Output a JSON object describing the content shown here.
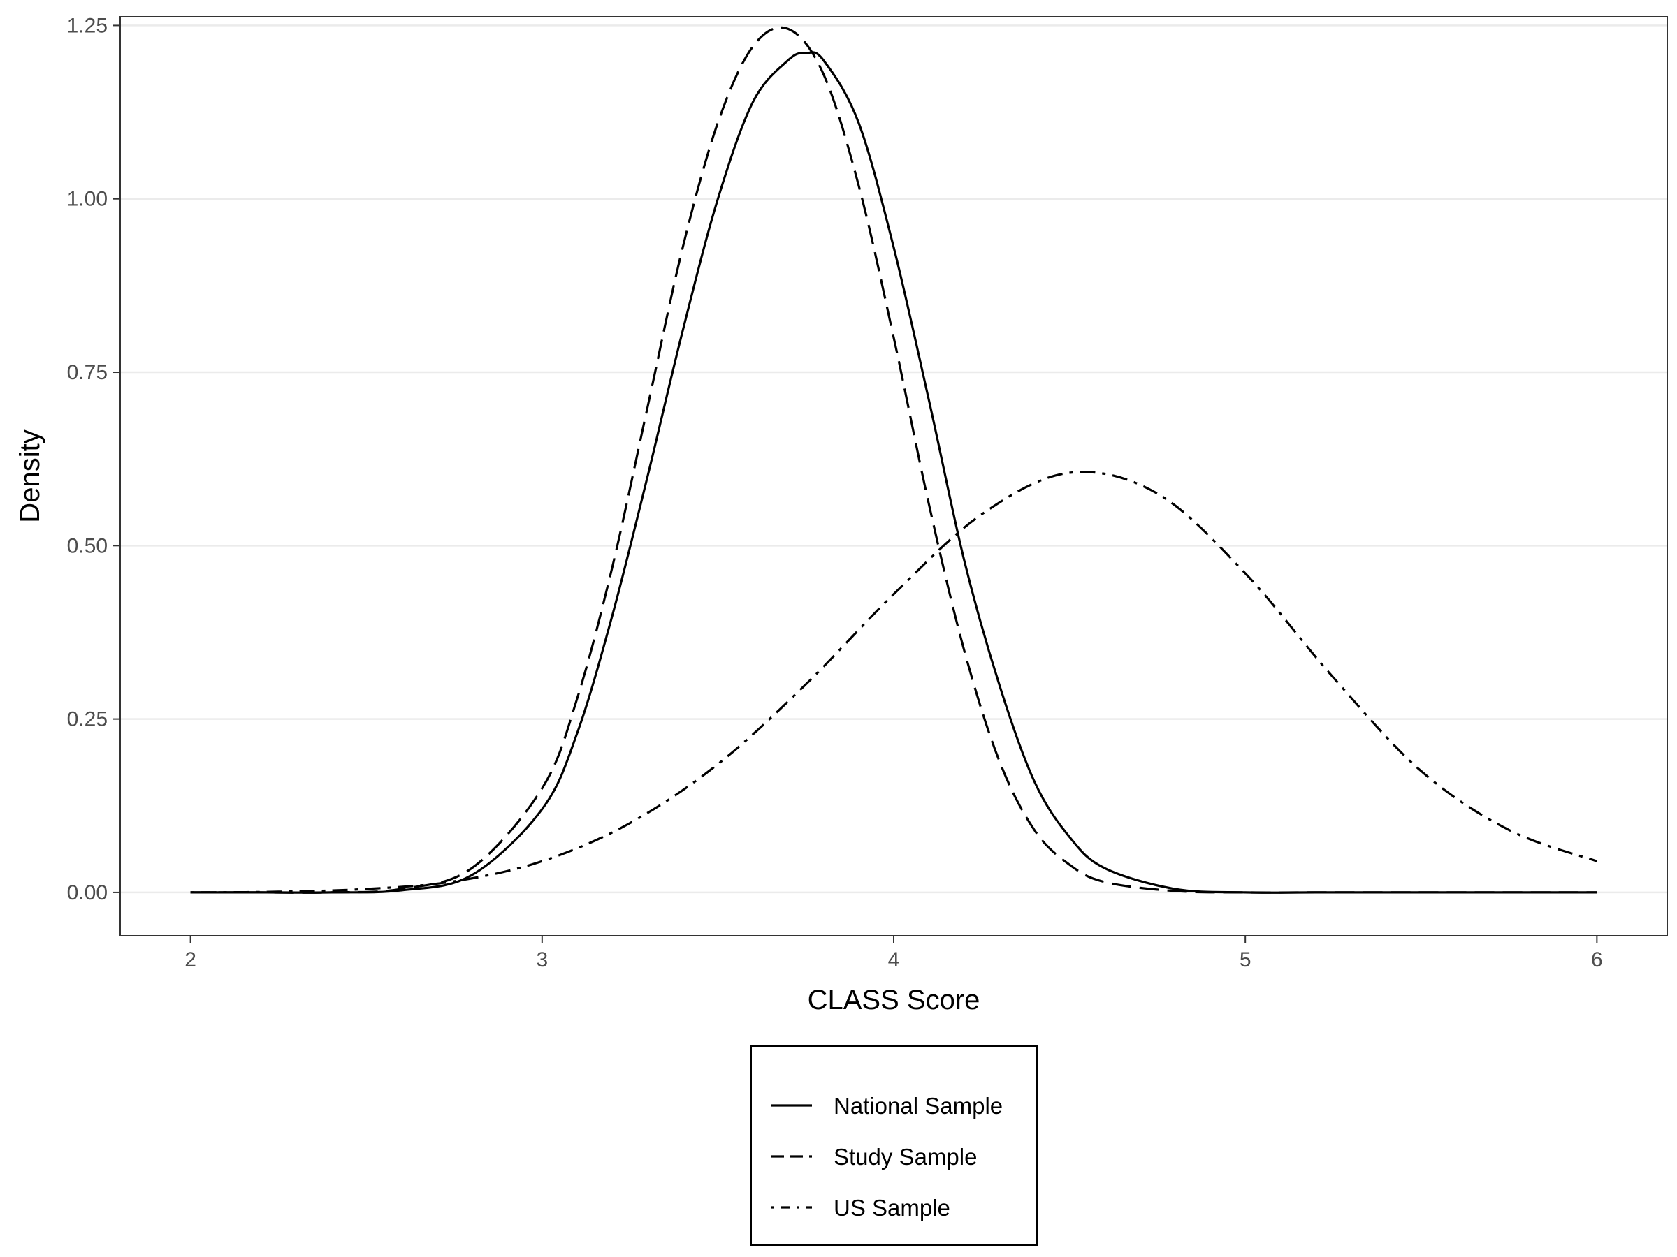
{
  "chart_data": {
    "type": "line",
    "xlabel": "CLASS Score",
    "ylabel": "Density",
    "xlim": [
      1.8,
      6.2
    ],
    "ylim": [
      -0.0625,
      1.2625
    ],
    "xticks": [
      2,
      3,
      4,
      5,
      6
    ],
    "yticks": [
      0.0,
      0.25,
      0.5,
      0.75,
      1.0,
      1.25
    ],
    "xtick_labels": [
      "2",
      "3",
      "4",
      "5",
      "6"
    ],
    "ytick_labels": [
      "0.00",
      "0.25",
      "0.50",
      "0.75",
      "1.00",
      "1.25"
    ],
    "grid": "horizontal-major",
    "legend_position": "bottom",
    "colors": {
      "line": "#000000",
      "grid": "#ebebeb",
      "panel_border": "#333333",
      "tick": "#333333",
      "tick_label": "#4d4d4d"
    },
    "series": [
      {
        "name": "National Sample",
        "linetype": "solid",
        "x": [
          2.0,
          2.2,
          2.4,
          2.6,
          2.8,
          3.0,
          3.1,
          3.2,
          3.3,
          3.4,
          3.5,
          3.6,
          3.7,
          3.75,
          3.8,
          3.9,
          4.0,
          4.1,
          4.2,
          4.3,
          4.4,
          4.5,
          4.6,
          4.8,
          5.0,
          5.2,
          5.5,
          6.0
        ],
        "y": [
          0.0,
          0.0,
          0.0,
          0.003,
          0.025,
          0.12,
          0.23,
          0.4,
          0.6,
          0.81,
          1.0,
          1.14,
          1.2,
          1.21,
          1.2,
          1.11,
          0.93,
          0.71,
          0.48,
          0.3,
          0.16,
          0.08,
          0.035,
          0.005,
          0.0,
          0.0,
          0.0,
          0.0
        ]
      },
      {
        "name": "Study Sample",
        "linetype": "dashed",
        "x": [
          2.0,
          2.2,
          2.4,
          2.6,
          2.8,
          3.0,
          3.1,
          3.2,
          3.3,
          3.4,
          3.5,
          3.6,
          3.7,
          3.8,
          3.9,
          4.0,
          4.1,
          4.2,
          4.3,
          4.4,
          4.5,
          4.6,
          4.8,
          5.0,
          5.2,
          5.5,
          6.0
        ],
        "y": [
          0.0,
          0.0,
          0.0,
          0.005,
          0.035,
          0.15,
          0.28,
          0.47,
          0.7,
          0.93,
          1.11,
          1.22,
          1.245,
          1.18,
          1.02,
          0.8,
          0.56,
          0.35,
          0.19,
          0.09,
          0.04,
          0.015,
          0.002,
          0.0,
          0.0,
          0.0,
          0.0
        ]
      },
      {
        "name": "US Sample",
        "linetype": "dotdash",
        "x": [
          2.0,
          2.25,
          2.5,
          2.75,
          3.0,
          3.25,
          3.5,
          3.75,
          4.0,
          4.25,
          4.5,
          4.75,
          5.0,
          5.25,
          5.5,
          5.75,
          6.0
        ],
        "y": [
          0.0,
          0.001,
          0.005,
          0.016,
          0.045,
          0.1,
          0.185,
          0.3,
          0.43,
          0.545,
          0.605,
          0.575,
          0.46,
          0.31,
          0.175,
          0.09,
          0.045
        ]
      }
    ]
  }
}
